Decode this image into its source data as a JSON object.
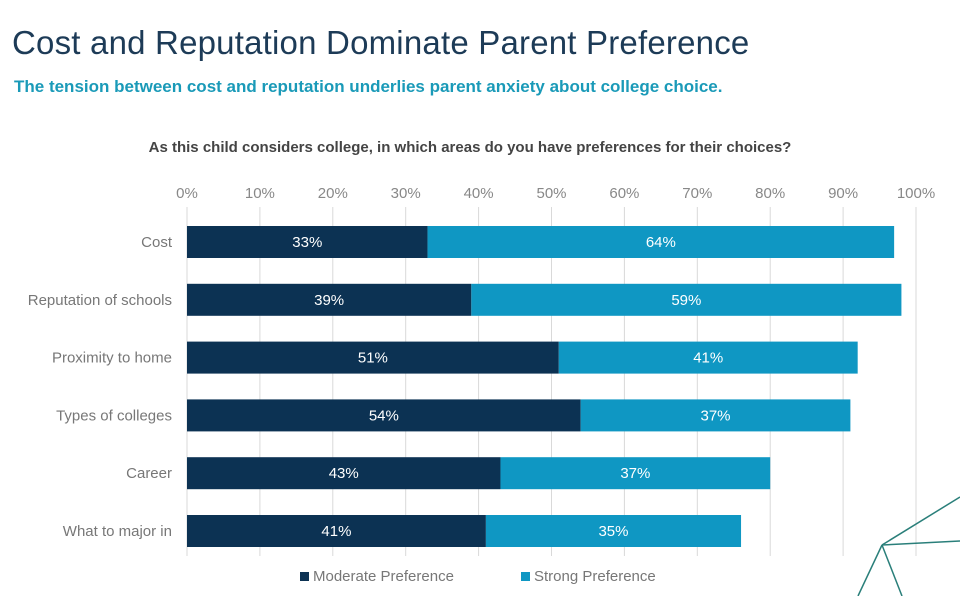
{
  "slide": {
    "title": "Cost and Reputation Dominate Parent Preference",
    "subtitle": "The tension between cost and reputation underlies parent anxiety about college choice."
  },
  "chart_data": {
    "type": "bar",
    "orientation": "horizontal",
    "stacked": true,
    "title": "As this child considers college, in which areas do you have preferences for their choices?",
    "categories": [
      "Cost",
      "Reputation of schools",
      "Proximity to home",
      "Types of colleges",
      "Career",
      "What to major in"
    ],
    "series": [
      {
        "name": "Moderate Preference",
        "values": [
          33,
          39,
          51,
          54,
          43,
          41
        ],
        "color": "#0c3253"
      },
      {
        "name": "Strong Preference",
        "values": [
          64,
          59,
          41,
          37,
          37,
          35
        ],
        "color": "#0f97c3"
      }
    ],
    "data_labels": [
      [
        "33%",
        "39%",
        "51%",
        "54%",
        "43%",
        "41%"
      ],
      [
        "64%",
        "59%",
        "41%",
        "37%",
        "37%",
        "35%"
      ]
    ],
    "x_ticks": [
      "0%",
      "10%",
      "20%",
      "30%",
      "40%",
      "50%",
      "60%",
      "70%",
      "80%",
      "90%",
      "100%"
    ],
    "xlim": [
      0,
      100
    ],
    "axis_position": "top",
    "grid": true,
    "legend": "bottom"
  },
  "colors": {
    "decor_line": "#2a7f7a",
    "gridline": "#d9d9d9",
    "tick_text": "#888888"
  }
}
